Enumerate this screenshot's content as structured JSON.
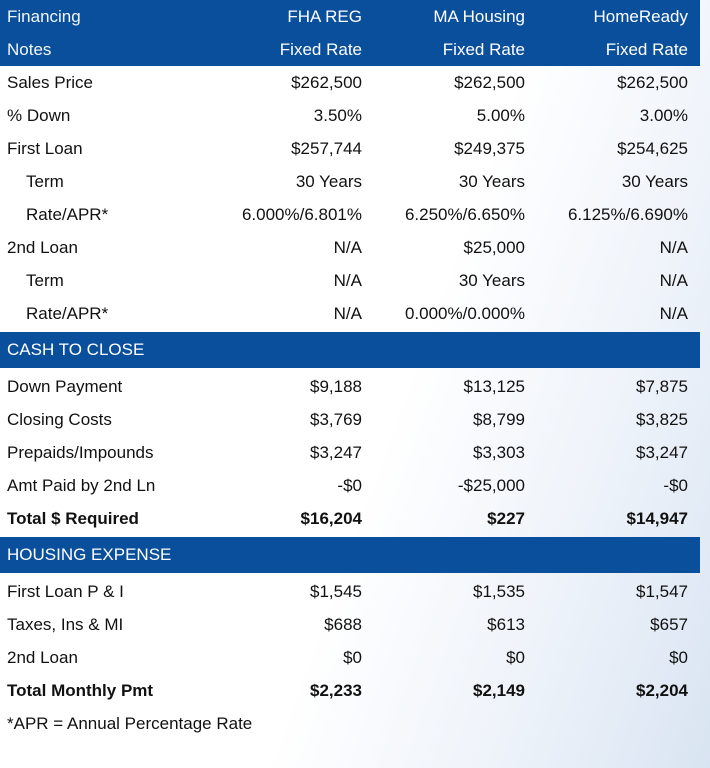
{
  "header": {
    "rows": [
      [
        "Financing",
        "FHA REG",
        "MA Housing",
        "HomeReady"
      ],
      [
        "Notes",
        "Fixed Rate",
        "Fixed Rate",
        "Fixed Rate"
      ]
    ]
  },
  "financing": [
    [
      "Sales Price",
      "$262,500",
      "$262,500",
      "$262,500"
    ],
    [
      "% Down",
      "3.50%",
      "5.00%",
      "3.00%"
    ],
    [
      "First Loan",
      "$257,744",
      "$249,375",
      "$254,625"
    ],
    [
      "Term",
      "30 Years",
      "30 Years",
      "30 Years"
    ],
    [
      "Rate/APR*",
      "6.000%/6.801%",
      "6.250%/6.650%",
      "6.125%/6.690%"
    ],
    [
      "2nd Loan",
      "N/A",
      "$25,000",
      "N/A"
    ],
    [
      "Term",
      "N/A",
      "30 Years",
      "N/A"
    ],
    [
      "Rate/APR*",
      "N/A",
      "0.000%/0.000%",
      "N/A"
    ]
  ],
  "cash_section_title": "CASH TO CLOSE",
  "cash": [
    [
      "Down Payment",
      "$9,188",
      "$13,125",
      "$7,875"
    ],
    [
      "Closing Costs",
      "$3,769",
      "$8,799",
      "$3,825"
    ],
    [
      "Prepaids/Impounds",
      "$3,247",
      "$3,303",
      "$3,247"
    ],
    [
      "Amt Paid by 2nd Ln",
      "-$0",
      "-$25,000",
      "-$0"
    ],
    [
      "Total $ Required",
      "$16,204",
      "$227",
      "$14,947"
    ]
  ],
  "housing_section_title": "HOUSING EXPENSE",
  "housing": [
    [
      "First Loan P & I",
      "$1,545",
      "$1,535",
      "$1,547"
    ],
    [
      "Taxes, Ins & MI",
      "$688",
      "$613",
      "$657"
    ],
    [
      "2nd Loan",
      "$0",
      "$0",
      "$0"
    ],
    [
      "Total Monthly Pmt",
      "$2,233",
      "$2,149",
      "$2,204"
    ]
  ],
  "footnote": "*APR = Annual Percentage Rate",
  "colors": {
    "band": "#0a4f9c"
  }
}
